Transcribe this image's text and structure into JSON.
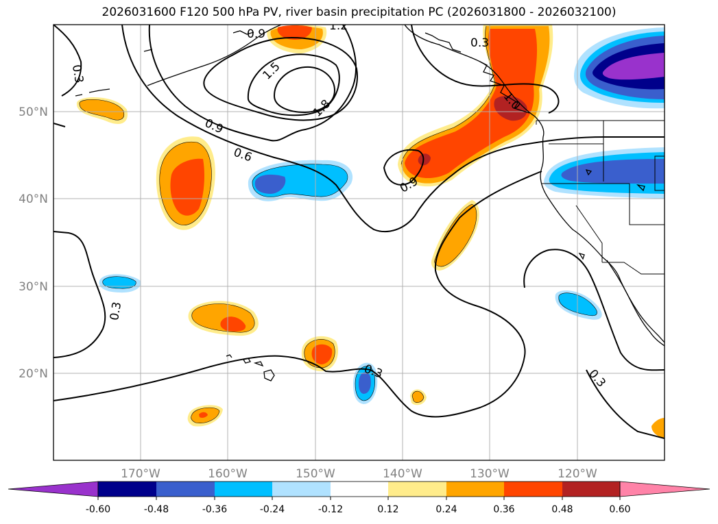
{
  "title": "2026031600 F120 500 hPa PV, river basin precipitation PC (2026031800 - 2026032100)",
  "axes": {
    "lat_labels": [
      "50°N",
      "40°N",
      "30°N",
      "20°N"
    ],
    "lon_labels": [
      "170°W",
      "160°W",
      "150°W",
      "140°W",
      "130°W",
      "120°W"
    ]
  },
  "contour_labels": [
    "0.3",
    "0.9",
    "1.2",
    "1.5",
    "1.8",
    "0.9",
    "0.6",
    "0.9",
    "0.3",
    "0.3",
    "0.3",
    "0.3",
    "1.0"
  ],
  "colorbar": {
    "ticks": [
      "-0.60",
      "-0.48",
      "-0.36",
      "-0.24",
      "-0.12",
      "0.12",
      "0.24",
      "0.36",
      "0.48",
      "0.60"
    ],
    "colors": [
      "#9932cc",
      "#00008b",
      "#3a5fcd",
      "#00bfff",
      "#b0e2ff",
      "#ffffff",
      "#ffec8b",
      "#ffa500",
      "#ff4500",
      "#b22222",
      "#ff83a8"
    ]
  },
  "colors": {
    "neg_strong": "#00008b",
    "neg_mid": "#3a5fcd",
    "neg": "#00bfff",
    "neg_light": "#b0e2ff",
    "neg_extreme": "#9932cc",
    "pos_light": "#ffec8b",
    "pos": "#ffa500",
    "pos_mid": "#ff4500",
    "pos_strong": "#b22222"
  }
}
